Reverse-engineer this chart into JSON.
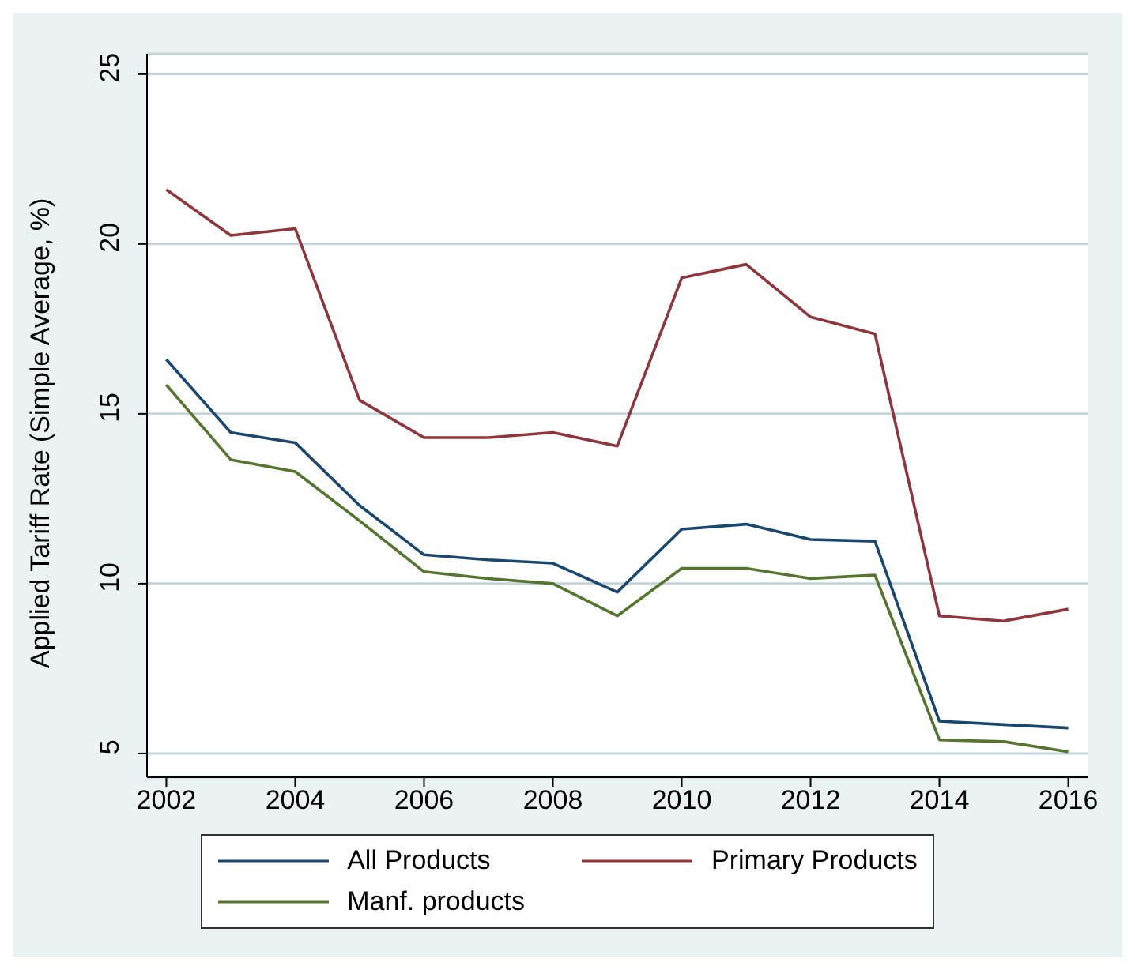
{
  "chart_data": {
    "type": "line",
    "ylabel": "Applied Tariff Rate (Simple Average, %)",
    "x": [
      2002,
      2003,
      2004,
      2005,
      2006,
      2007,
      2008,
      2009,
      2010,
      2011,
      2012,
      2013,
      2014,
      2015,
      2016
    ],
    "xlim": [
      2001.7,
      2016.3
    ],
    "xticks": [
      2002,
      2004,
      2006,
      2008,
      2010,
      2012,
      2014,
      2016
    ],
    "ylim": [
      4.3,
      25.6
    ],
    "yticks": [
      5,
      10,
      15,
      20,
      25
    ],
    "grid": "y",
    "legend": "bottom",
    "marker": "none",
    "line_style": "solid",
    "series": [
      {
        "name": "All Products",
        "color": "#1a476f",
        "values": [
          16.6,
          14.45,
          14.15,
          12.3,
          10.85,
          10.7,
          10.6,
          9.75,
          11.6,
          11.75,
          11.3,
          11.25,
          5.95,
          5.85,
          5.75
        ]
      },
      {
        "name": "Primary Products",
        "color": "#90353b",
        "values": [
          21.6,
          20.25,
          20.45,
          15.4,
          14.3,
          14.3,
          14.45,
          14.05,
          19.0,
          19.4,
          17.85,
          17.35,
          9.05,
          8.9,
          9.25
        ]
      },
      {
        "name": "Manf. products",
        "color": "#55752f",
        "values": [
          15.85,
          13.65,
          13.3,
          11.85,
          10.35,
          10.15,
          10.0,
          9.05,
          10.45,
          10.45,
          10.15,
          10.25,
          5.4,
          5.35,
          5.05
        ]
      }
    ]
  }
}
